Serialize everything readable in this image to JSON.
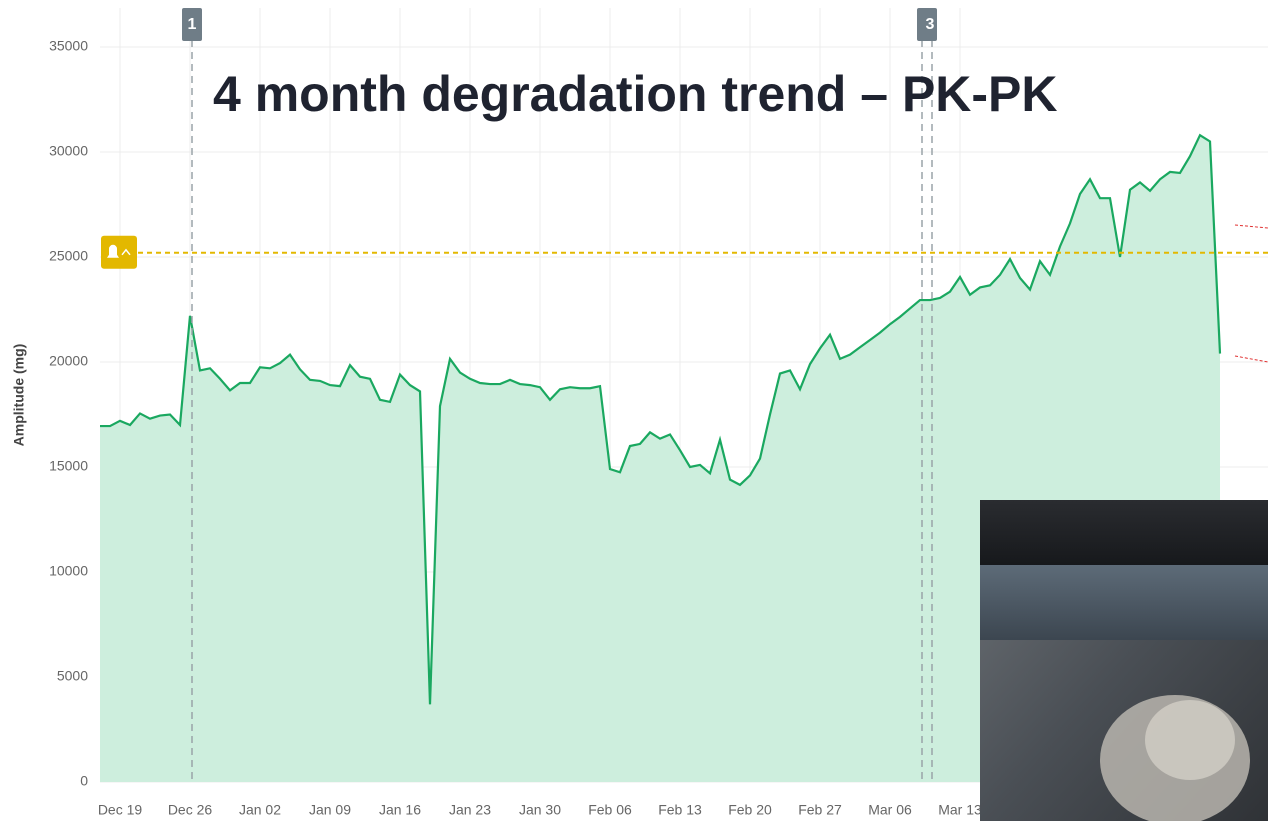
{
  "chart_data": {
    "type": "area",
    "title": "4 month degradation trend – PK-PK",
    "ylabel": "Amplitude (mg)",
    "categories": [
      null,
      null,
      "Dec 19",
      null,
      null,
      null,
      null,
      null,
      null,
      "Dec 26",
      null,
      null,
      null,
      null,
      null,
      null,
      "Jan 02",
      null,
      null,
      null,
      null,
      null,
      null,
      "Jan 09",
      null,
      null,
      null,
      null,
      null,
      null,
      "Jan 16",
      null,
      null,
      null,
      null,
      null,
      null,
      "Jan 23",
      null,
      null,
      null,
      null,
      null,
      null,
      "Jan 30",
      null,
      null,
      null,
      null,
      null,
      null,
      "Feb 06",
      null,
      null,
      null,
      null,
      null,
      null,
      "Feb 13",
      null,
      null,
      null,
      null,
      null,
      null,
      "Feb 20",
      null,
      null,
      null,
      null,
      null,
      null,
      "Feb 27",
      null,
      null,
      null,
      null,
      null,
      null,
      "Mar 06",
      null,
      null,
      null,
      null,
      null,
      null,
      "Mar 13",
      null,
      null,
      null,
      null,
      null,
      null,
      null,
      null,
      null,
      null,
      null,
      null,
      null,
      null,
      null,
      null,
      null,
      null,
      null,
      null,
      null,
      null,
      null,
      null,
      null,
      null
    ],
    "values": [
      16950,
      16950,
      17200,
      17000,
      17550,
      17300,
      17450,
      17500,
      17000,
      22200,
      19600,
      19700,
      19200,
      18650,
      19000,
      19000,
      19750,
      19700,
      19950,
      20350,
      19650,
      19150,
      19100,
      18900,
      18850,
      19850,
      19300,
      19200,
      18200,
      18100,
      19400,
      18900,
      18600,
      3700,
      17900,
      20150,
      19500,
      19200,
      19000,
      18950,
      18950,
      19150,
      18950,
      18900,
      18800,
      18200,
      18700,
      18800,
      18750,
      18750,
      18850,
      14900,
      14750,
      16000,
      16100,
      16650,
      16350,
      16550,
      15800,
      15000,
      15100,
      14700,
      16300,
      14400,
      14150,
      14600,
      15400,
      17500,
      19450,
      19600,
      18700,
      19900,
      20650,
      21300,
      20150,
      20350,
      20700,
      21050,
      21400,
      21800,
      22150,
      22550,
      22950,
      22950,
      23050,
      23350,
      24050,
      23200,
      23550,
      23650,
      24150,
      24900,
      24000,
      23450,
      24800,
      24150,
      25500,
      26600,
      28000,
      28700,
      27800,
      27800,
      25000,
      28200,
      28550,
      28150,
      28700,
      29050,
      29000,
      29800,
      30800,
      30500,
      20400
    ],
    "color": "#1aa860",
    "fill": "#cdeedd",
    "ylim": [
      0,
      35000
    ],
    "yticks": [
      0,
      5000,
      10000,
      15000,
      20000,
      25000,
      30000,
      35000
    ],
    "grid": true,
    "threshold": {
      "value": 25200,
      "color": "#e3b800"
    },
    "markers": [
      {
        "label": "1"
      },
      {
        "label": "3"
      }
    ]
  }
}
